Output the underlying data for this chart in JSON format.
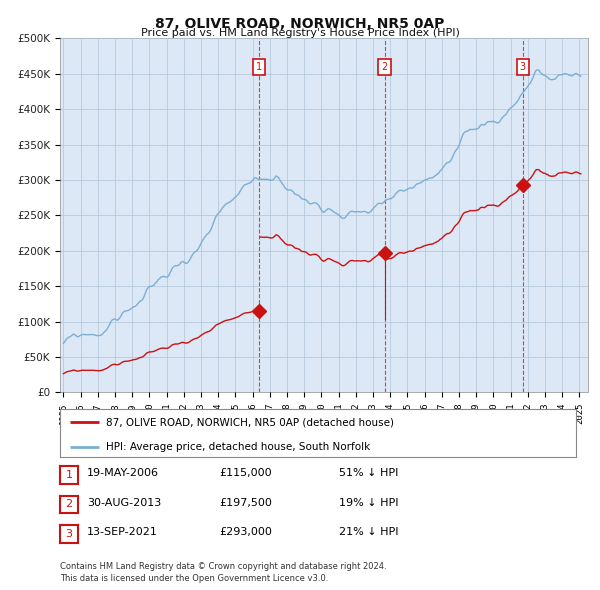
{
  "title": "87, OLIVE ROAD, NORWICH, NR5 0AP",
  "subtitle": "Price paid vs. HM Land Registry's House Price Index (HPI)",
  "legend_line1": "87, OLIVE ROAD, NORWICH, NR5 0AP (detached house)",
  "legend_line2": "HPI: Average price, detached house, South Norfolk",
  "footer1": "Contains HM Land Registry data © Crown copyright and database right 2024.",
  "footer2": "This data is licensed under the Open Government Licence v3.0.",
  "transactions": [
    {
      "num": 1,
      "date": "19-MAY-2006",
      "price": 115000,
      "price_str": "£115,000",
      "pct": "51%",
      "dir": "↓",
      "x_year": 2006.38
    },
    {
      "num": 2,
      "date": "30-AUG-2013",
      "price": 197500,
      "price_str": "£197,500",
      "pct": "19%",
      "dir": "↓",
      "x_year": 2013.67
    },
    {
      "num": 3,
      "date": "13-SEP-2021",
      "price": 293000,
      "price_str": "£293,000",
      "pct": "21%",
      "dir": "↓",
      "x_year": 2021.7
    }
  ],
  "hpi_color": "#7bafd4",
  "hpi_fill": "#dce8f5",
  "price_color": "#cc1111",
  "dashed_color": "#cc3333",
  "ylim": [
    0,
    500000
  ],
  "xlim_start": 1994.8,
  "xlim_end": 2025.5,
  "yticks": [
    0,
    50000,
    100000,
    150000,
    200000,
    250000,
    300000,
    350000,
    400000,
    450000,
    500000
  ],
  "xticks": [
    1995,
    1996,
    1997,
    1998,
    1999,
    2000,
    2001,
    2002,
    2003,
    2004,
    2005,
    2006,
    2007,
    2008,
    2009,
    2010,
    2011,
    2012,
    2013,
    2014,
    2015,
    2016,
    2017,
    2018,
    2019,
    2020,
    2021,
    2022,
    2023,
    2024,
    2025
  ],
  "background_color": "#ffffff",
  "plot_bg_color": "#dce8f5",
  "grid_color": "#b0c4d8"
}
